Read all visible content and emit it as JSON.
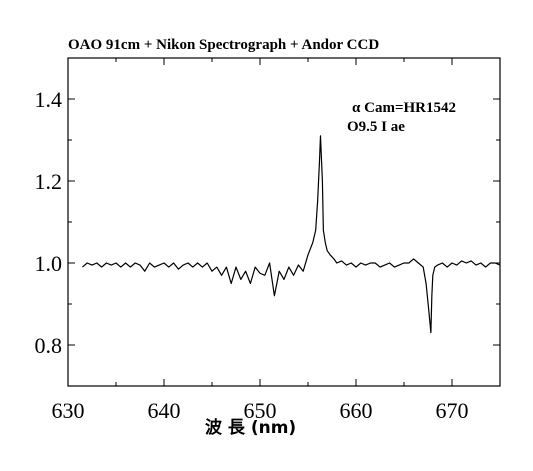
{
  "chart_data": {
    "type": "line",
    "title": "OAO 91cm + Nikon Spectrograph + Andor CCD",
    "xlabel": "波 長 (nm)",
    "ylabel": "",
    "xlim": [
      630,
      675
    ],
    "ylim": [
      0.7,
      1.5
    ],
    "x_ticks": [
      630,
      640,
      650,
      660,
      670
    ],
    "x_tick_labels": [
      "630",
      "640",
      "650",
      "660",
      "670"
    ],
    "y_ticks": [
      0.8,
      1.0,
      1.2,
      1.4
    ],
    "y_tick_labels": [
      "0.8",
      "1.0",
      "1.2",
      "1.4"
    ],
    "grid": false,
    "annotations": [
      "α Cam=HR1542",
      "O9.5 I ae"
    ],
    "series": [
      {
        "x": [
          631.5,
          632.0,
          632.5,
          633.0,
          633.5,
          634.0,
          634.5,
          635.0,
          635.5,
          636.0,
          636.5,
          637.0,
          637.5,
          638.0,
          638.5,
          639.0,
          639.5,
          640.0,
          640.5,
          641.0,
          641.5,
          642.0,
          642.5,
          643.0,
          643.5,
          644.0,
          644.5,
          645.0,
          645.5,
          646.0,
          646.5,
          647.0,
          647.5,
          648.0,
          648.5,
          649.0,
          649.5,
          650.0,
          650.5,
          651.0,
          651.5,
          652.0,
          652.5,
          653.0,
          653.5,
          654.0,
          654.5,
          655.0,
          655.5,
          655.8,
          656.0,
          656.2,
          656.3,
          656.5,
          656.6,
          656.8,
          657.0,
          657.3,
          657.7,
          658.0,
          658.5,
          659.0,
          659.5,
          660.0,
          660.5,
          661.0,
          661.5,
          662.0,
          662.5,
          663.0,
          663.5,
          664.0,
          664.5,
          665.0,
          665.5,
          666.0,
          666.5,
          667.0,
          667.3,
          667.6,
          667.8,
          667.9,
          668.0,
          668.2,
          668.5,
          669.0,
          669.5,
          670.0,
          670.5,
          671.0,
          671.5,
          672.0,
          672.5,
          673.0,
          673.5,
          674.0,
          674.5,
          675.0
        ],
        "y": [
          0.99,
          1.0,
          0.995,
          1.0,
          0.99,
          1.0,
          0.995,
          1.0,
          0.99,
          1.0,
          0.99,
          1.0,
          0.995,
          0.98,
          1.0,
          0.99,
          0.995,
          1.0,
          0.99,
          1.0,
          0.985,
          0.995,
          1.0,
          0.99,
          1.0,
          0.99,
          1.0,
          0.98,
          0.99,
          0.97,
          0.99,
          0.95,
          0.99,
          0.96,
          0.98,
          0.95,
          0.99,
          0.975,
          0.97,
          1.0,
          0.92,
          0.98,
          0.96,
          0.99,
          0.97,
          0.995,
          0.98,
          1.02,
          1.05,
          1.08,
          1.15,
          1.25,
          1.31,
          1.2,
          1.08,
          1.05,
          1.03,
          1.02,
          1.01,
          1.0,
          1.005,
          0.995,
          1.0,
          0.99,
          1.0,
          0.995,
          1.0,
          1.0,
          0.99,
          0.995,
          1.0,
          0.99,
          0.995,
          1.0,
          1.0,
          1.01,
          1.0,
          0.99,
          0.95,
          0.88,
          0.83,
          0.92,
          0.97,
          0.99,
          0.995,
          1.0,
          0.99,
          1.0,
          0.995,
          1.005,
          1.0,
          1.005,
          0.995,
          1.0,
          0.99,
          1.0,
          1.0,
          0.995
        ]
      }
    ]
  },
  "colors": {
    "line": "#000000",
    "axes": "#000000",
    "background": "#ffffff"
  }
}
